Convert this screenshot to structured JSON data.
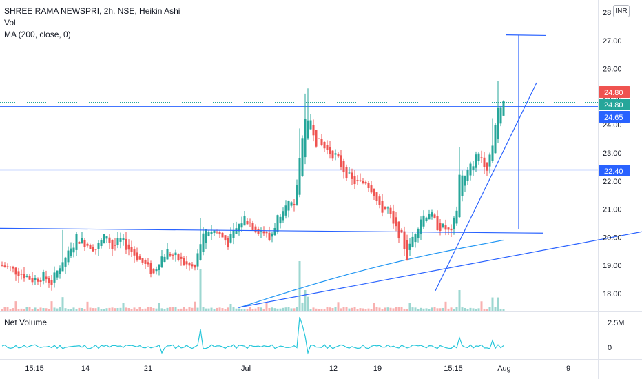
{
  "legend": {
    "title": "SHREE RAMA NEWSPRI, 2h, NSE, Heikin Ashi",
    "vol": "Vol",
    "ma": "MA (200, close, 0)"
  },
  "currency_button": "INR",
  "net_volume_label": "Net Volume",
  "colors": {
    "up": "#26a69a",
    "down": "#ef5350",
    "drawing": "#2962ff",
    "ma": "#2196f3",
    "net_volume": "#26c6da",
    "badge_red": "#ef5350",
    "badge_teal": "#26a69a",
    "badge_blue": "#2962ff"
  },
  "chart_data": [
    {
      "type": "candlestick",
      "title": "",
      "y_axis_ticks": [
        "18.00",
        "19.00",
        "20.00",
        "21.00",
        "22.00",
        "23.00",
        "24.00",
        "25.00",
        "26.00",
        "27.00",
        "28"
      ],
      "x_axis_ticks": [
        "15:15",
        "14",
        "21",
        "Jul",
        "12",
        "19",
        "15:15",
        "Aug",
        "9"
      ],
      "price_badges": [
        {
          "label": "24.80",
          "value": 24.8,
          "color": "#ef5350"
        },
        {
          "label": "24.80",
          "value": 24.8,
          "color": "#26a69a"
        },
        {
          "label": "24.65",
          "value": 24.65,
          "color": "#2962ff"
        },
        {
          "label": "22.40",
          "value": 22.4,
          "color": "#2962ff"
        }
      ],
      "horizontal_lines": [
        24.65,
        22.4
      ],
      "dotted_last_price": 24.8,
      "ohlc_close_path": [
        {
          "i": 0,
          "close": 19.0
        },
        {
          "i": 6,
          "close": 18.75
        },
        {
          "i": 11,
          "close": 18.5
        },
        {
          "i": 15,
          "close": 18.6
        },
        {
          "i": 18,
          "close": 18.4
        },
        {
          "i": 22,
          "close": 19.2
        },
        {
          "i": 25,
          "close": 19.5
        },
        {
          "i": 27,
          "close": 20.0
        },
        {
          "i": 30,
          "close": 19.8
        },
        {
          "i": 34,
          "close": 19.6
        },
        {
          "i": 38,
          "close": 20.1
        },
        {
          "i": 40,
          "close": 19.6
        },
        {
          "i": 43,
          "close": 19.9
        },
        {
          "i": 48,
          "close": 19.4
        },
        {
          "i": 52,
          "close": 19.0
        },
        {
          "i": 55,
          "close": 18.7
        },
        {
          "i": 57,
          "close": 19.2
        },
        {
          "i": 60,
          "close": 19.5
        },
        {
          "i": 63,
          "close": 19.3
        },
        {
          "i": 67,
          "close": 19.0
        },
        {
          "i": 70,
          "close": 18.9
        },
        {
          "i": 72,
          "close": 19.8
        },
        {
          "i": 74,
          "close": 20.3
        },
        {
          "i": 78,
          "close": 20.2
        },
        {
          "i": 82,
          "close": 19.8
        },
        {
          "i": 85,
          "close": 20.3
        },
        {
          "i": 88,
          "close": 20.7
        },
        {
          "i": 92,
          "close": 20.3
        },
        {
          "i": 95,
          "close": 20.2
        },
        {
          "i": 97,
          "close": 19.9
        },
        {
          "i": 100,
          "close": 20.7
        },
        {
          "i": 103,
          "close": 21.3
        },
        {
          "i": 106,
          "close": 21.0
        },
        {
          "i": 108,
          "close": 22.8
        },
        {
          "i": 110,
          "close": 24.3
        },
        {
          "i": 112,
          "close": 24.2
        },
        {
          "i": 114,
          "close": 23.4
        },
        {
          "i": 118,
          "close": 23.1
        },
        {
          "i": 121,
          "close": 22.9
        },
        {
          "i": 124,
          "close": 22.4
        },
        {
          "i": 127,
          "close": 22.0
        },
        {
          "i": 130,
          "close": 21.9
        },
        {
          "i": 132,
          "close": 22.0
        },
        {
          "i": 135,
          "close": 21.6
        },
        {
          "i": 137,
          "close": 21.0
        },
        {
          "i": 140,
          "close": 21.0
        },
        {
          "i": 142,
          "close": 20.4
        },
        {
          "i": 145,
          "close": 20.0
        },
        {
          "i": 147,
          "close": 19.3
        },
        {
          "i": 149,
          "close": 20.0
        },
        {
          "i": 152,
          "close": 20.7
        },
        {
          "i": 155,
          "close": 20.9
        },
        {
          "i": 158,
          "close": 20.4
        },
        {
          "i": 161,
          "close": 20.3
        },
        {
          "i": 163,
          "close": 20.1
        },
        {
          "i": 165,
          "close": 21.0
        },
        {
          "i": 166,
          "close": 22.2
        },
        {
          "i": 168,
          "close": 22.1
        },
        {
          "i": 170,
          "close": 22.5
        },
        {
          "i": 173,
          "close": 23.0
        },
        {
          "i": 176,
          "close": 22.5
        },
        {
          "i": 178,
          "close": 23.4
        },
        {
          "i": 180,
          "close": 24.6
        },
        {
          "i": 182,
          "close": 24.8
        }
      ]
    },
    {
      "type": "line",
      "title": "",
      "y_axis_ticks": [
        "2.5M",
        "0"
      ]
    }
  ]
}
